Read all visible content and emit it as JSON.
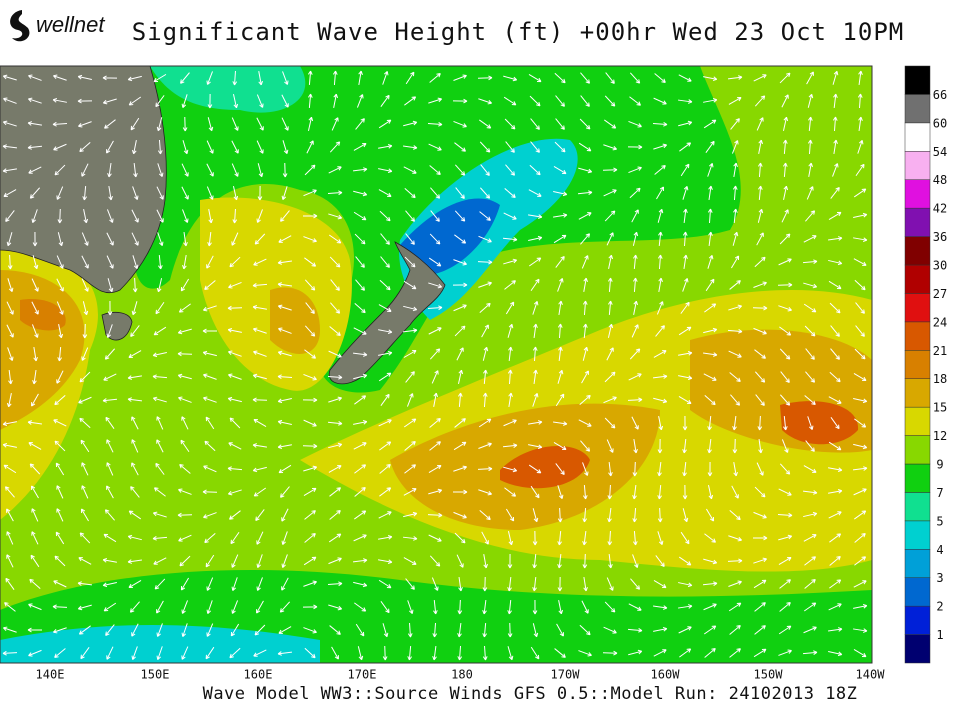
{
  "logo": "wellnet",
  "title": "Significant Wave Height (ft) +00hr Wed 23 Oct 10PM",
  "x_labels": [
    "140E",
    "150E",
    "160E",
    "170E",
    "180",
    "170W",
    "160W",
    "150W",
    "140W"
  ],
  "colorbar": {
    "labels": [
      "1",
      "2",
      "3",
      "4",
      "5",
      "7",
      "9",
      "12",
      "15",
      "18",
      "21",
      "24",
      "27",
      "30",
      "36",
      "42",
      "48",
      "54",
      "60",
      "66"
    ],
    "colors": [
      "#000070",
      "#0020d8",
      "#0068d0",
      "#00a0d8",
      "#00d0d0",
      "#10e090",
      "#10d010",
      "#88d800",
      "#d8d800",
      "#d8a800",
      "#d88000",
      "#d85800",
      "#e01010",
      "#b00000",
      "#800000",
      "#8010b0",
      "#e010e0",
      "#f8b0f0",
      "#ffffff",
      "#707070",
      "#000000"
    ]
  },
  "footer": "Wave Model WW3::Source Winds GFS 0.5::Model Run: 24102013 18Z"
}
